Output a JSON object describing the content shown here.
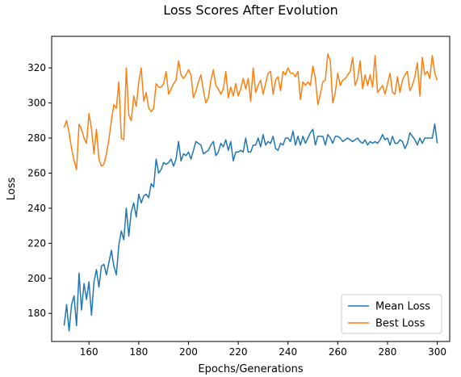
{
  "chart_data": {
    "type": "line",
    "title": "Loss Scores After Evolution",
    "xlabel": "Epochs/Generations",
    "ylabel": "Loss",
    "xlim": [
      145,
      305
    ],
    "ylim": [
      164,
      338
    ],
    "xticks": [
      160,
      180,
      200,
      220,
      240,
      260,
      280,
      300
    ],
    "yticks": [
      180,
      200,
      220,
      240,
      260,
      280,
      300,
      320
    ],
    "grid": false,
    "legend_position": "lower-right",
    "x": [
      150,
      151,
      152,
      153,
      154,
      155,
      156,
      157,
      158,
      159,
      160,
      161,
      162,
      163,
      164,
      165,
      166,
      167,
      168,
      169,
      170,
      171,
      172,
      173,
      174,
      175,
      176,
      177,
      178,
      179,
      180,
      181,
      182,
      183,
      184,
      185,
      186,
      187,
      188,
      189,
      190,
      191,
      192,
      193,
      194,
      195,
      196,
      197,
      198,
      199,
      200,
      201,
      202,
      203,
      204,
      205,
      206,
      207,
      208,
      209,
      210,
      211,
      212,
      213,
      214,
      215,
      216,
      217,
      218,
      219,
      220,
      221,
      222,
      223,
      224,
      225,
      226,
      227,
      228,
      229,
      230,
      231,
      232,
      233,
      234,
      235,
      236,
      237,
      238,
      239,
      240,
      241,
      242,
      243,
      244,
      245,
      246,
      247,
      248,
      249,
      250,
      251,
      252,
      253,
      254,
      255,
      256,
      257,
      258,
      259,
      260,
      261,
      262,
      263,
      264,
      265,
      266,
      267,
      268,
      269,
      270,
      271,
      272,
      273,
      274,
      275,
      276,
      277,
      278,
      279,
      280,
      281,
      282,
      283,
      284,
      285,
      286,
      287,
      288,
      289,
      290,
      291,
      292,
      293,
      294,
      295,
      296,
      297,
      298,
      299,
      300
    ],
    "series": [
      {
        "name": "Mean Loss",
        "color": "#1f77b4",
        "values": [
          173,
          185,
          170,
          185,
          190,
          173,
          203,
          182,
          197,
          188,
          198,
          179,
          198,
          205,
          195,
          207,
          208,
          202,
          209,
          216,
          207,
          202,
          219,
          227,
          222,
          240,
          224,
          238,
          243,
          235,
          248,
          243,
          247,
          248,
          246,
          254,
          252,
          268,
          260,
          262,
          266,
          265,
          266,
          268,
          264,
          268,
          278,
          267,
          271,
          270,
          272,
          268,
          273,
          278,
          277,
          276,
          271,
          272,
          273,
          276,
          278,
          270,
          272,
          277,
          275,
          279,
          273,
          278,
          267,
          272,
          272,
          273,
          272,
          280,
          272,
          272,
          276,
          276,
          280,
          275,
          282,
          276,
          278,
          277,
          281,
          274,
          273,
          277,
          276,
          280,
          280,
          278,
          284,
          276,
          281,
          276,
          281,
          277,
          280,
          283,
          285,
          276,
          281,
          281,
          281,
          276,
          282,
          280,
          277,
          281,
          281,
          280,
          278,
          279,
          280,
          279,
          278,
          279,
          280,
          278,
          277,
          279,
          276,
          278,
          277,
          278,
          277,
          279,
          282,
          279,
          280,
          276,
          281,
          277,
          277,
          279,
          278,
          274,
          277,
          283,
          281,
          279,
          276,
          280,
          277,
          280,
          280,
          280,
          280,
          288,
          277
        ]
      },
      {
        "name": "Best Loss",
        "color": "#ff7f0e",
        "values": [
          286,
          290,
          283,
          274,
          267,
          262,
          288,
          285,
          280,
          277,
          294,
          285,
          271,
          285,
          268,
          264,
          265,
          271,
          279,
          290,
          299,
          297,
          312,
          280,
          279,
          320,
          293,
          290,
          304,
          298,
          312,
          320,
          301,
          306,
          297,
          295,
          297,
          311,
          309,
          309,
          311,
          318,
          305,
          308,
          311,
          313,
          324,
          316,
          314,
          316,
          319,
          316,
          303,
          307,
          312,
          316,
          307,
          300,
          303,
          313,
          319,
          310,
          308,
          305,
          308,
          318,
          303,
          309,
          304,
          311,
          304,
          308,
          314,
          308,
          314,
          301,
          320,
          306,
          310,
          313,
          305,
          311,
          317,
          318,
          305,
          313,
          315,
          307,
          318,
          316,
          320,
          317,
          317,
          315,
          318,
          302,
          312,
          310,
          312,
          310,
          321,
          314,
          299,
          305,
          312,
          313,
          328,
          324,
          300,
          306,
          317,
          310,
          313,
          314,
          316,
          318,
          326,
          310,
          314,
          324,
          308,
          316,
          310,
          316,
          309,
          327,
          306,
          308,
          310,
          305,
          311,
          317,
          306,
          305,
          315,
          306,
          313,
          316,
          318,
          307,
          310,
          315,
          323,
          304,
          326,
          316,
          318,
          314,
          327,
          317,
          313
        ]
      }
    ]
  }
}
